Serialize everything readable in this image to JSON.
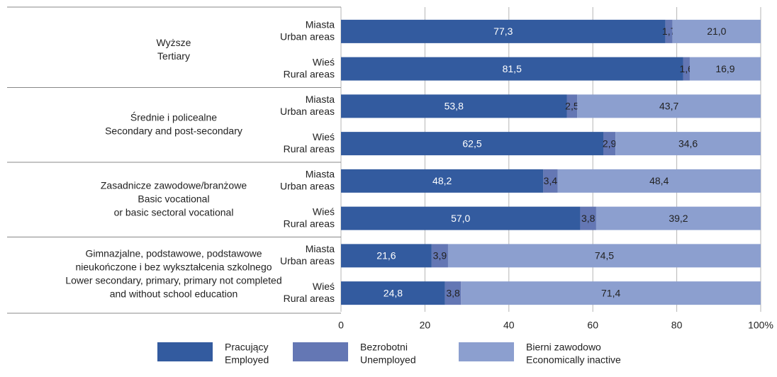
{
  "chart_data": {
    "type": "bar",
    "orientation": "horizontal",
    "stacked": true,
    "groups": [
      [
        "Wyższe",
        "Tertiary"
      ],
      [
        "Średnie i policealne",
        "Secondary and post-secondary"
      ],
      [
        "Zasadnicze zawodowe/branżowe",
        "Basic vocational",
        "or basic sectoral vocational"
      ],
      [
        "Gimnazjalne, podstawowe, podstawowe",
        "nieukończone i bez wykształcenia szkolnego",
        "Lower secondary, primary, primary not completed",
        "and without school education"
      ]
    ],
    "categories": [
      [
        "Miasta",
        "Urban areas"
      ],
      [
        "Wieś",
        "Rural areas"
      ],
      [
        "Miasta",
        "Urban areas"
      ],
      [
        "Wieś",
        "Rural areas"
      ],
      [
        "Miasta",
        "Urban areas"
      ],
      [
        "Wieś",
        "Rural areas"
      ],
      [
        "Miasta",
        "Urban areas"
      ],
      [
        "Wieś",
        "Rural areas"
      ]
    ],
    "series": [
      {
        "name": [
          "Pracujący",
          "Employed"
        ],
        "color": "#335b9f",
        "label_color": "#ffffff",
        "values": [
          77.3,
          81.5,
          53.8,
          62.5,
          48.2,
          57.0,
          21.6,
          24.8
        ],
        "value_labels": [
          "77,3",
          "81,5",
          "53,8",
          "62,5",
          "48,2",
          "57,0",
          "21,6",
          "24,8"
        ]
      },
      {
        "name": [
          "Bezrobotni",
          "Unemployed"
        ],
        "color": "#6477b4",
        "label_color": "#222222",
        "values": [
          1.7,
          1.6,
          2.5,
          2.9,
          3.4,
          3.8,
          3.9,
          3.8
        ],
        "value_labels": [
          "1,7",
          "1,6",
          "2,5",
          "2,9",
          "3,4",
          "3,8",
          "3,9",
          "3,8"
        ]
      },
      {
        "name": [
          "Bierni zawodowo",
          "Economically inactive"
        ],
        "color": "#8c9fcf",
        "label_color": "#222222",
        "values": [
          21.0,
          16.9,
          43.7,
          34.6,
          48.4,
          39.2,
          74.5,
          71.4
        ],
        "value_labels": [
          "21,0",
          "16,9",
          "43,7",
          "34,6",
          "48,4",
          "39,2",
          "74,5",
          "71,4"
        ]
      }
    ],
    "xlim": [
      0,
      100
    ],
    "xticks": [
      0,
      20,
      40,
      60,
      80,
      {
        "value": 100,
        "label": "100%"
      }
    ],
    "grid": true,
    "legend": "bottom"
  }
}
